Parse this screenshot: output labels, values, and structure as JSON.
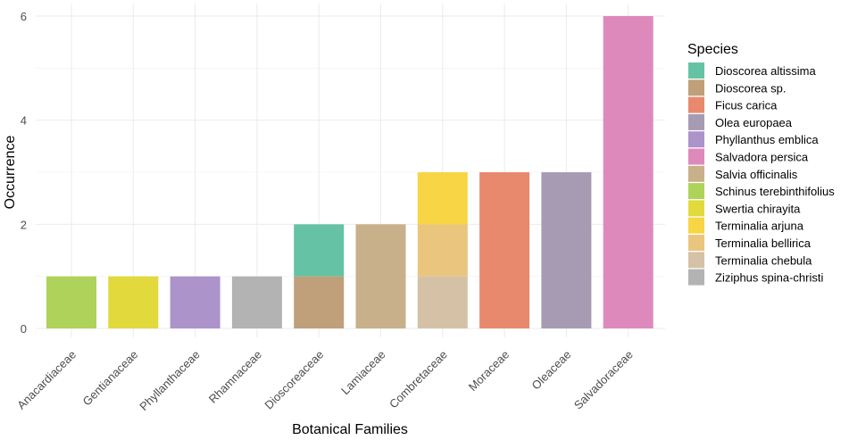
{
  "chart_data": {
    "type": "bar",
    "stacked": true,
    "xlabel": "Botanical Families",
    "ylabel": "Occurrence",
    "ylim": [
      0,
      6
    ],
    "yticks": [
      "0",
      "2",
      "4",
      "6"
    ],
    "grid": true,
    "legend_position": "right",
    "categories": [
      "Anacardiaceae",
      "Gentianaceae",
      "Phyllanthaceae",
      "Rhamnaceae",
      "Dioscoreaceae",
      "Lamiaceae",
      "Combretaceae",
      "Moraceae",
      "Oleaceae",
      "Salvadoraceae"
    ],
    "legend": {
      "title": "Species",
      "entries": [
        {
          "label": "Dioscorea altissima",
          "color": "#66c2a5"
        },
        {
          "label": "Dioscorea sp.",
          "color": "#bfa07a"
        },
        {
          "label": "Ficus carica",
          "color": "#e8896e"
        },
        {
          "label": "Olea europaea",
          "color": "#a79bb3"
        },
        {
          "label": "Phyllanthus emblica",
          "color": "#ac93ca"
        },
        {
          "label": "Salvadora persica",
          "color": "#de89bb"
        },
        {
          "label": "Salvia officinalis",
          "color": "#c8b08a"
        },
        {
          "label": "Schinus terebinthifolius",
          "color": "#afd25a"
        },
        {
          "label": "Swertia chirayita",
          "color": "#e2d93c"
        },
        {
          "label": "Terminalia arjuna",
          "color": "#f7d544"
        },
        {
          "label": "Terminalia bellirica",
          "color": "#e9c57e"
        },
        {
          "label": "Terminalia chebula",
          "color": "#d5c2a6"
        },
        {
          "label": "Ziziphus spina-christi",
          "color": "#b3b3b3"
        }
      ]
    },
    "bars": [
      {
        "category": "Anacardiaceae",
        "segments": [
          {
            "species": "Schinus terebinthifolius",
            "value": 1
          }
        ]
      },
      {
        "category": "Gentianaceae",
        "segments": [
          {
            "species": "Swertia chirayita",
            "value": 1
          }
        ]
      },
      {
        "category": "Phyllanthaceae",
        "segments": [
          {
            "species": "Phyllanthus emblica",
            "value": 1
          }
        ]
      },
      {
        "category": "Rhamnaceae",
        "segments": [
          {
            "species": "Ziziphus spina-christi",
            "value": 1
          }
        ]
      },
      {
        "category": "Dioscoreaceae",
        "segments": [
          {
            "species": "Dioscorea sp.",
            "value": 1
          },
          {
            "species": "Dioscorea altissima",
            "value": 1
          }
        ]
      },
      {
        "category": "Lamiaceae",
        "segments": [
          {
            "species": "Salvia officinalis",
            "value": 2
          }
        ]
      },
      {
        "category": "Combretaceae",
        "segments": [
          {
            "species": "Terminalia chebula",
            "value": 1
          },
          {
            "species": "Terminalia bellirica",
            "value": 1
          },
          {
            "species": "Terminalia arjuna",
            "value": 1
          }
        ]
      },
      {
        "category": "Moraceae",
        "segments": [
          {
            "species": "Ficus carica",
            "value": 3
          }
        ]
      },
      {
        "category": "Oleaceae",
        "segments": [
          {
            "species": "Olea europaea",
            "value": 3
          }
        ]
      },
      {
        "category": "Salvadoraceae",
        "segments": [
          {
            "species": "Salvadora persica",
            "value": 6
          }
        ]
      }
    ]
  }
}
